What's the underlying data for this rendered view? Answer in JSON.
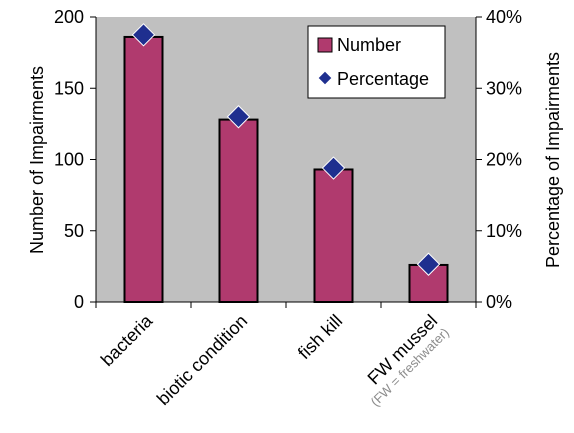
{
  "colors": {
    "plot_bg": "#c0c0c0",
    "bar_fill": "#b03a6e",
    "bar_stroke": "#000000",
    "marker_fill": "#1f2f8f",
    "marker_stroke": "#ffffff"
  },
  "chart_data": {
    "type": "bar",
    "categories": [
      "bacteria",
      "biotic condition",
      "fish kill",
      "FW mussel"
    ],
    "category_subtitles": [
      "",
      "",
      "",
      "(FW = freshwater)"
    ],
    "series": [
      {
        "name": "Number",
        "type": "bar",
        "axis": "left",
        "values": [
          186,
          128,
          93,
          26
        ]
      },
      {
        "name": "Percentage",
        "type": "scatter",
        "axis": "right",
        "values": [
          37.5,
          26.0,
          18.8,
          5.3
        ]
      }
    ],
    "ylabel": "Number of Impairments",
    "ylim": [
      0,
      200
    ],
    "yticks": [
      "0",
      "50",
      "100",
      "150",
      "200"
    ],
    "y2label": "Percentage of Impairments",
    "y2lim": [
      0,
      40
    ],
    "y2ticks": [
      "0%",
      "10%",
      "20%",
      "30%",
      "40%"
    ],
    "grid": false,
    "legend_position": "top-right"
  }
}
